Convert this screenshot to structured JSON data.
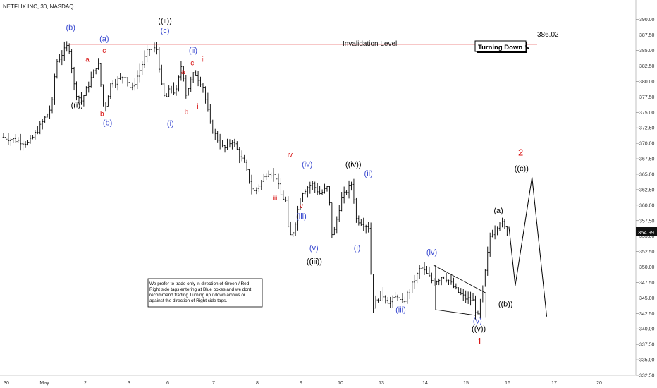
{
  "title": "NETFLIX INC, 30, NASDAQ",
  "colors": {
    "bars": "#000000",
    "wave_black": "#000000",
    "wave_blue": "#3848d0",
    "wave_red": "#d81414",
    "invalidation": "#e02020",
    "price_tag_bg": "#111111",
    "price_tag_text": "#ffffff",
    "grid_tick": "#777777"
  },
  "invalidation": {
    "label": "Invalidation Level",
    "price": 386.02,
    "price_label": "386.02"
  },
  "turning_box": {
    "text": "Turning Down ↘"
  },
  "note_box": {
    "lines": [
      "We prefer to trade only in direction of Green / Red",
      "Right side tags entering at Blue boxes and we dont",
      "recommend trading Turning up / down arrows or",
      "against the direction of Right side tags."
    ]
  },
  "chart_data": {
    "type": "ohlc",
    "title": "NETFLIX INC, 30, NASDAQ",
    "y_axis": {
      "side": "right",
      "range": [
        332.5,
        391.5
      ],
      "ticks": [
        "390.00",
        "387.50",
        "385.00",
        "382.50",
        "380.00",
        "377.50",
        "375.00",
        "372.50",
        "370.00",
        "367.50",
        "365.00",
        "362.50",
        "360.00",
        "357.50",
        "355.00",
        "352.50",
        "350.00",
        "347.50",
        "345.00",
        "342.50",
        "340.00",
        "337.50",
        "335.00",
        "332.50"
      ]
    },
    "x_axis": {
      "labels": [
        "30",
        "May",
        "2",
        "3",
        "6",
        "7",
        "8",
        "9",
        "10",
        "13",
        "14",
        "15",
        "16",
        "17",
        "20"
      ]
    },
    "last_price": "354.99",
    "price_path": [
      [
        0,
        371.0
      ],
      [
        0.6,
        370.0
      ],
      [
        0.85,
        372.5
      ],
      [
        1.15,
        376.0
      ],
      [
        1.25,
        383.0
      ],
      [
        1.55,
        386.0
      ],
      [
        1.7,
        378.5
      ],
      [
        1.85,
        376.8
      ],
      [
        2.0,
        379.0
      ],
      [
        2.25,
        383.2
      ],
      [
        2.4,
        375.2
      ],
      [
        2.55,
        379.5
      ],
      [
        2.9,
        381.0
      ],
      [
        3.05,
        378.5
      ],
      [
        3.45,
        385.2
      ],
      [
        3.7,
        385.2
      ],
      [
        3.72,
        380.5
      ],
      [
        3.85,
        377.0
      ],
      [
        4.0,
        379.2
      ],
      [
        4.1,
        377.8
      ],
      [
        4.25,
        383.0
      ],
      [
        4.35,
        378.0
      ],
      [
        4.55,
        381.5
      ],
      [
        4.75,
        379.3
      ],
      [
        4.95,
        372.5
      ],
      [
        5.25,
        369.0
      ],
      [
        5.45,
        370.5
      ],
      [
        5.75,
        366.5
      ],
      [
        5.95,
        362.0
      ],
      [
        6.15,
        363.8
      ],
      [
        6.3,
        365.5
      ],
      [
        6.5,
        364.5
      ],
      [
        6.6,
        361.7
      ],
      [
        6.75,
        360.5
      ],
      [
        6.8,
        354.5
      ],
      [
        6.92,
        356.0
      ],
      [
        7.1,
        362.0
      ],
      [
        7.35,
        363.5
      ],
      [
        7.55,
        361.8
      ],
      [
        7.75,
        363.0
      ],
      [
        7.8,
        356.5
      ],
      [
        7.85,
        354.7
      ],
      [
        8.05,
        361.0
      ],
      [
        8.3,
        363.5
      ],
      [
        8.35,
        361.3
      ],
      [
        8.4,
        357.8
      ],
      [
        8.7,
        356.5
      ],
      [
        8.8,
        343.5
      ],
      [
        9.0,
        345.8
      ],
      [
        9.2,
        344.2
      ],
      [
        9.4,
        345.4
      ],
      [
        9.5,
        343.8
      ],
      [
        9.95,
        350.0
      ],
      [
        10.25,
        347.5
      ],
      [
        10.5,
        348.7
      ],
      [
        10.8,
        346.2
      ],
      [
        11.0,
        345.0
      ],
      [
        11.2,
        344.5
      ],
      [
        11.3,
        341.6
      ],
      [
        11.45,
        347.5
      ],
      [
        11.6,
        355.0
      ],
      [
        11.85,
        357.5
      ],
      [
        12.05,
        354.99
      ]
    ],
    "projection_path": [
      [
        12.05,
        356.5
      ],
      [
        12.2,
        347.0
      ],
      [
        12.6,
        364.5
      ],
      [
        12.95,
        342.0
      ]
    ],
    "invalidation_level": 386.02,
    "wave_labels": [
      {
        "text": "(b)",
        "color": "blue",
        "x": 1.6,
        "price": 388.3
      },
      {
        "text": "((i))",
        "color": "black",
        "x": 1.75,
        "price": 375.8
      },
      {
        "text": "a",
        "color": "red",
        "x": 2.0,
        "price": 383.2
      },
      {
        "text": "(a)",
        "color": "blue",
        "x": 2.4,
        "price": 386.5
      },
      {
        "text": "c",
        "color": "red",
        "x": 2.4,
        "price": 384.6
      },
      {
        "text": "b",
        "color": "red",
        "x": 2.35,
        "price": 374.4
      },
      {
        "text": "(b)",
        "color": "blue",
        "x": 2.48,
        "price": 372.9
      },
      {
        "text": "((ii))",
        "color": "black",
        "x": 3.85,
        "price": 389.4
      },
      {
        "text": "(c)",
        "color": "blue",
        "x": 3.85,
        "price": 387.8
      },
      {
        "text": "(i)",
        "color": "blue",
        "x": 3.98,
        "price": 372.8
      },
      {
        "text": "(ii)",
        "color": "blue",
        "x": 4.52,
        "price": 384.6
      },
      {
        "text": "a",
        "color": "red",
        "x": 4.28,
        "price": 381.2
      },
      {
        "text": "c",
        "color": "red",
        "x": 4.5,
        "price": 382.6
      },
      {
        "text": "ii",
        "color": "red",
        "x": 4.76,
        "price": 383.2
      },
      {
        "text": "b",
        "color": "red",
        "x": 4.36,
        "price": 374.7
      },
      {
        "text": "i",
        "color": "red",
        "x": 4.63,
        "price": 375.6
      },
      {
        "text": "iii",
        "color": "red",
        "x": 6.47,
        "price": 360.8
      },
      {
        "text": "iv",
        "color": "red",
        "x": 6.83,
        "price": 367.8
      },
      {
        "text": "(iv)",
        "color": "blue",
        "x": 7.24,
        "price": 366.2
      },
      {
        "text": "v",
        "color": "red",
        "x": 7.1,
        "price": 359.5
      },
      {
        "text": "(iii)",
        "color": "blue",
        "x": 7.1,
        "price": 357.8
      },
      {
        "text": "(v)",
        "color": "blue",
        "x": 7.4,
        "price": 352.7
      },
      {
        "text": "((iii))",
        "color": "black",
        "x": 7.41,
        "price": 350.5
      },
      {
        "text": "((iv))",
        "color": "black",
        "x": 8.34,
        "price": 366.2
      },
      {
        "text": "(ii)",
        "color": "blue",
        "x": 8.7,
        "price": 364.7
      },
      {
        "text": "(i)",
        "color": "blue",
        "x": 8.43,
        "price": 352.7
      },
      {
        "text": "(iii)",
        "color": "blue",
        "x": 9.47,
        "price": 342.7
      },
      {
        "text": "(iv)",
        "color": "blue",
        "x": 10.21,
        "price": 352.0
      },
      {
        "text": "(v)",
        "color": "blue",
        "x": 11.3,
        "price": 340.9
      },
      {
        "text": "((v))",
        "color": "black",
        "x": 11.33,
        "price": 339.6
      },
      {
        "text": "1",
        "color": "red",
        "x": 11.35,
        "price": 337.5
      },
      {
        "text": "(a)",
        "color": "black",
        "x": 11.8,
        "price": 358.7
      },
      {
        "text": "((b))",
        "color": "black",
        "x": 11.97,
        "price": 343.6
      },
      {
        "text": "2",
        "color": "red",
        "x": 12.33,
        "price": 368.0
      },
      {
        "text": "((c))",
        "color": "black",
        "x": 12.35,
        "price": 365.5
      }
    ]
  }
}
